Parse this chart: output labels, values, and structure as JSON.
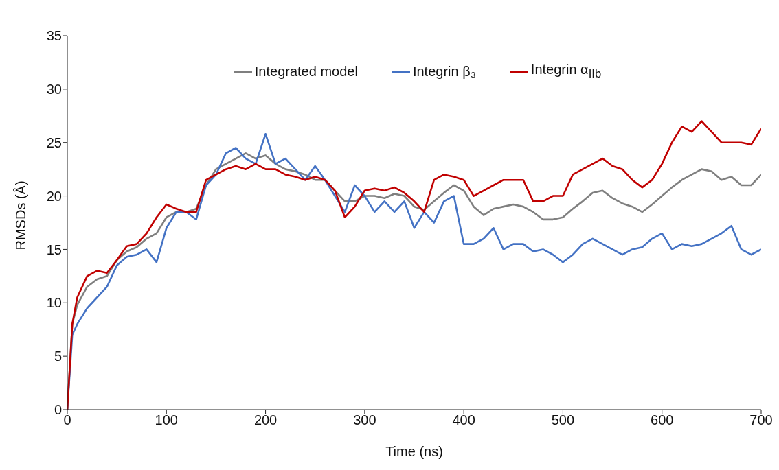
{
  "chart_data": {
    "type": "line",
    "xlabel": "Time (ns)",
    "ylabel": "RMSDs (Å)",
    "x": [
      0,
      5,
      10,
      20,
      30,
      40,
      50,
      60,
      70,
      80,
      90,
      100,
      110,
      120,
      130,
      140,
      150,
      160,
      170,
      180,
      190,
      200,
      210,
      220,
      230,
      240,
      250,
      260,
      270,
      280,
      290,
      300,
      310,
      320,
      330,
      340,
      350,
      360,
      370,
      380,
      390,
      400,
      410,
      420,
      430,
      440,
      450,
      460,
      470,
      480,
      490,
      500,
      510,
      520,
      530,
      540,
      550,
      560,
      570,
      580,
      590,
      600,
      610,
      620,
      630,
      640,
      650,
      660,
      670,
      680,
      690,
      700
    ],
    "series": [
      {
        "name": "Integrated model",
        "color": "#7f7f7f",
        "values": [
          0,
          8,
          9.8,
          11.5,
          12.2,
          12.5,
          14,
          14.8,
          15.2,
          16,
          16.5,
          18,
          18.5,
          18.5,
          18.8,
          21,
          22.5,
          23,
          23.5,
          24,
          23.5,
          23.8,
          23,
          22.5,
          22.3,
          22,
          21.5,
          21.5,
          20.5,
          19.5,
          19.5,
          20,
          20,
          19.8,
          20.2,
          20,
          19,
          18.7,
          19.5,
          20.3,
          21,
          20.5,
          19,
          18.2,
          18.8,
          19,
          19.2,
          19,
          18.5,
          17.8,
          17.8,
          18,
          18.8,
          19.5,
          20.3,
          20.5,
          19.8,
          19.3,
          19,
          18.5,
          19.2,
          20,
          20.8,
          21.5,
          22,
          22.5,
          22.3,
          21.5,
          21.8,
          21,
          21,
          22
        ]
      },
      {
        "name": "Integrin β₃",
        "color": "#4472c4",
        "values": [
          0,
          7,
          8,
          9.5,
          10.5,
          11.5,
          13.5,
          14.3,
          14.5,
          15,
          13.8,
          17,
          18.5,
          18.5,
          17.8,
          21,
          22,
          24,
          24.5,
          23.5,
          23,
          25.8,
          23,
          23.5,
          22.5,
          21.5,
          22.8,
          21.5,
          20,
          18.5,
          21,
          20,
          18.5,
          19.5,
          18.5,
          19.5,
          17,
          18.5,
          17.5,
          19.5,
          20,
          15.5,
          15.5,
          16,
          17,
          15,
          15.5,
          15.5,
          14.8,
          15,
          14.5,
          13.8,
          14.5,
          15.5,
          16,
          15.5,
          15,
          14.5,
          15,
          15.2,
          16,
          16.5,
          15,
          15.5,
          15.3,
          15.5,
          16,
          16.5,
          17.2,
          15,
          14.5,
          15
        ]
      },
      {
        "name": "Integrin α$_{IIb}$",
        "color": "#c00000",
        "values": [
          0,
          8,
          10.5,
          12.5,
          13,
          12.8,
          14,
          15.3,
          15.5,
          16.5,
          18,
          19.2,
          18.8,
          18.5,
          18.5,
          21.5,
          22,
          22.5,
          22.8,
          22.5,
          23,
          22.5,
          22.5,
          22,
          21.8,
          21.5,
          21.8,
          21.5,
          20.5,
          18,
          19,
          20.5,
          20.7,
          20.5,
          20.8,
          20.3,
          19.5,
          18.5,
          21.5,
          22,
          21.8,
          21.5,
          20,
          20.5,
          21,
          21.5,
          21.5,
          21.5,
          19.5,
          19.5,
          20,
          20,
          22,
          22.5,
          23,
          23.5,
          22.8,
          22.5,
          21.5,
          20.8,
          21.5,
          23,
          25,
          26.5,
          26,
          27,
          26,
          25,
          25,
          25,
          24.8,
          26.3
        ]
      }
    ],
    "xlim": [
      0,
      700
    ],
    "xticks": [
      0,
      100,
      200,
      300,
      400,
      500,
      600,
      700
    ],
    "ylim": [
      0,
      35
    ],
    "yticks": [
      0,
      5,
      10,
      15,
      20,
      25,
      30,
      35
    ],
    "legend": "top",
    "grid": false,
    "marker": "none",
    "line_style": "solid"
  }
}
